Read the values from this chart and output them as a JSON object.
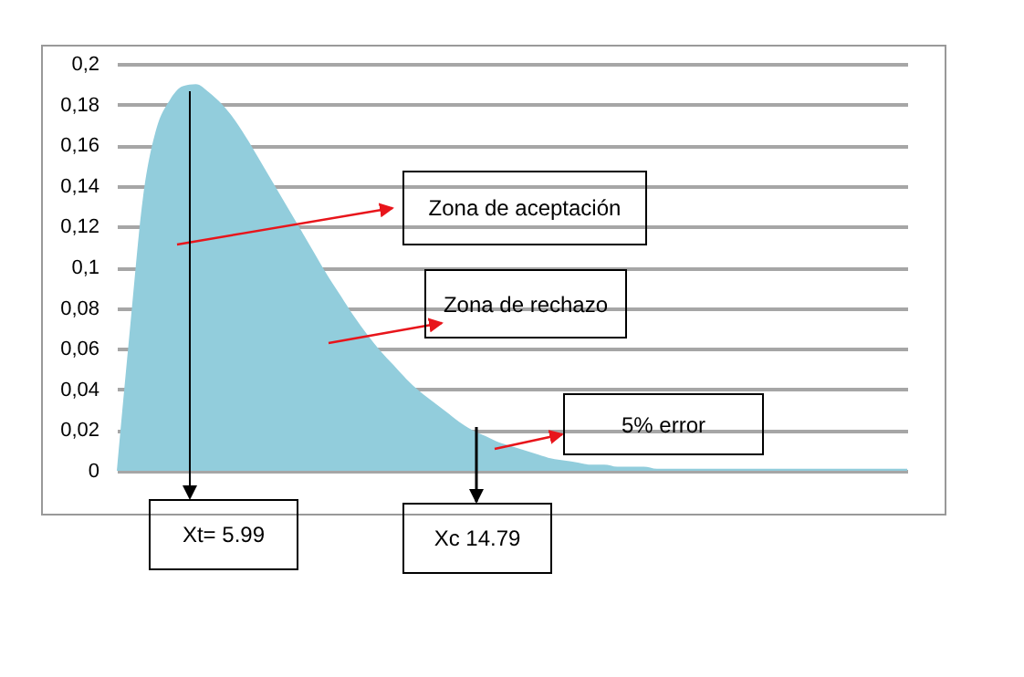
{
  "chart_data": {
    "type": "area",
    "categories": [
      null,
      null,
      null,
      null,
      null,
      null,
      null,
      null,
      null,
      null,
      null,
      null,
      null,
      null,
      null,
      null,
      null,
      null,
      null,
      null,
      null,
      null,
      null,
      null,
      null,
      null,
      null,
      null,
      null,
      null,
      null,
      null,
      null,
      null,
      null,
      null,
      null,
      null,
      null,
      null,
      null,
      null,
      null,
      null,
      null,
      null,
      null,
      null,
      null,
      null,
      null,
      null,
      null,
      null,
      null,
      null,
      null,
      null,
      null,
      null,
      null
    ],
    "values": [
      0,
      0.07,
      0.135,
      0.168,
      0.182,
      0.189,
      0.19,
      0.186,
      0.18,
      0.172,
      0.162,
      0.151,
      0.14,
      0.129,
      0.118,
      0.107,
      0.096,
      0.086,
      0.076,
      0.067,
      0.059,
      0.052,
      0.045,
      0.039,
      0.034,
      0.029,
      0.024,
      0.02,
      0.017,
      0.014,
      0.012,
      0.01,
      0.008,
      0.006,
      0.005,
      0.004,
      0.003,
      0.003,
      0.002,
      0.002,
      0.002,
      0.001,
      0.001,
      0.001,
      0.001,
      0.001,
      0.001,
      0.001,
      0.001,
      0.001,
      0.001,
      0.001,
      0.001,
      0.001,
      0.001,
      0.001,
      0.001,
      0.001,
      0.001,
      0.001,
      0.001
    ],
    "color": "#92cddc",
    "ylim": [
      0,
      0.2
    ],
    "yticks": [
      0,
      {
        "value": 0.02,
        "label": "0,02"
      },
      {
        "value": 0.04,
        "label": "0,04"
      },
      {
        "value": 0.06,
        "label": "0,06"
      },
      {
        "value": 0.08,
        "label": "0,08"
      },
      {
        "value": 0.1,
        "label": "0,1"
      },
      {
        "value": 0.12,
        "label": "0,12"
      },
      {
        "value": 0.14,
        "label": "0,14"
      },
      {
        "value": 0.16,
        "label": "0,16"
      },
      {
        "value": 0.18,
        "label": "0,18"
      },
      {
        "value": 0.2,
        "label": "0,2"
      }
    ],
    "grid": "y",
    "tick_labels": "y",
    "annotations": [
      "Zona de aceptación",
      "Zona de rechazo",
      "5% error",
      "Xt= 5.99",
      "Xc 14.79"
    ]
  }
}
